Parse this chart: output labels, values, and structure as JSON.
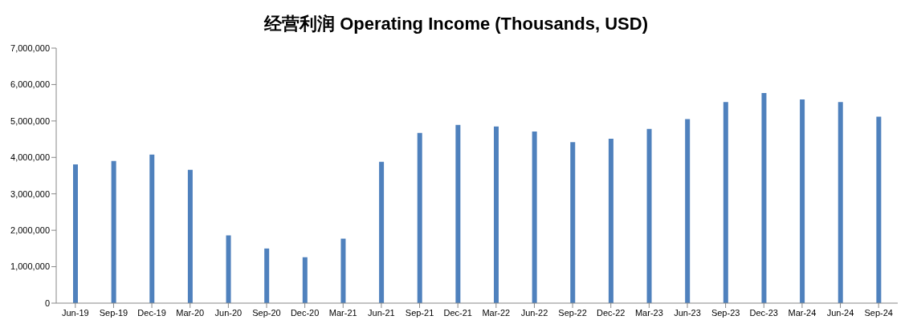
{
  "chart_data": {
    "type": "bar",
    "title": "经营利润 Operating Income (Thousands, USD)",
    "categories": [
      "Jun-19",
      "Sep-19",
      "Dec-19",
      "Mar-20",
      "Jun-20",
      "Sep-20",
      "Dec-20",
      "Mar-21",
      "Jun-21",
      "Sep-21",
      "Dec-21",
      "Mar-22",
      "Jun-22",
      "Sep-22",
      "Dec-22",
      "Mar-23",
      "Jun-23",
      "Sep-23",
      "Dec-23",
      "Mar-24",
      "Jun-24",
      "Sep-24"
    ],
    "values": [
      3810000,
      3900000,
      4080000,
      3660000,
      1860000,
      1500000,
      1260000,
      1770000,
      3880000,
      4670000,
      4890000,
      4850000,
      4710000,
      4420000,
      4510000,
      4780000,
      5050000,
      5520000,
      5770000,
      5590000,
      5520000,
      5120000
    ],
    "color": "#4f81bd",
    "ylim": [
      0,
      7000000
    ],
    "yticks": [
      0,
      {
        "value": 1000000,
        "label": "1,000,000"
      },
      {
        "value": 2000000,
        "label": "2,000,000"
      },
      {
        "value": 3000000,
        "label": "3,000,000"
      },
      {
        "value": 4000000,
        "label": "4,000,000"
      },
      {
        "value": 5000000,
        "label": "5,000,000"
      },
      {
        "value": 6000000,
        "label": "6,000,000"
      },
      {
        "value": 7000000,
        "label": "7,000,000"
      }
    ],
    "grid": false,
    "legend": false
  }
}
